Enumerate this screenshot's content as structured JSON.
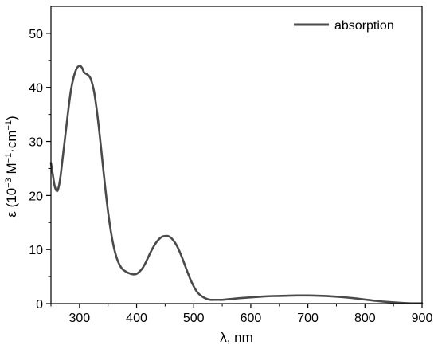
{
  "chart_data": {
    "type": "line",
    "title": "",
    "xlabel": "λ, nm",
    "ylabel_parts": {
      "prefix": "ε (10",
      "exp1": "−3",
      "mid1": " M",
      "exp2": "−1",
      "mid2": "·cm",
      "exp3": "−1",
      "suffix": ")"
    },
    "xlim": [
      250,
      900
    ],
    "ylim": [
      0,
      55
    ],
    "xticks": [
      300,
      400,
      500,
      600,
      700,
      800,
      900
    ],
    "xtick_labels": [
      "300",
      "400",
      "500",
      "600",
      "700",
      "800",
      "900"
    ],
    "yticks": [
      0,
      10,
      20,
      30,
      40,
      50
    ],
    "ytick_labels": [
      "0",
      "10",
      "20",
      "30",
      "40",
      "50"
    ],
    "legend_position": "top-right",
    "grid": false,
    "series": [
      {
        "name": "absorption",
        "color": "#4a4a4a",
        "x": [
          250,
          253,
          256,
          259,
          262,
          266,
          270,
          275,
          280,
          285,
          290,
          295,
          300,
          304,
          308,
          312,
          316,
          320,
          325,
          330,
          335,
          340,
          345,
          350,
          355,
          360,
          365,
          370,
          375,
          380,
          385,
          390,
          395,
          400,
          405,
          410,
          415,
          420,
          425,
          430,
          435,
          440,
          445,
          450,
          455,
          460,
          465,
          470,
          475,
          480,
          485,
          490,
          495,
          500,
          505,
          510,
          515,
          520,
          525,
          530,
          535,
          540,
          545,
          550,
          555,
          560,
          570,
          580,
          600,
          620,
          640,
          660,
          680,
          700,
          720,
          740,
          760,
          780,
          800,
          820,
          840,
          860,
          880,
          900
        ],
        "y": [
          26.0,
          24.0,
          22.0,
          21.0,
          21.0,
          23.0,
          26.5,
          31.0,
          35.5,
          39.5,
          42.0,
          43.5,
          44.0,
          43.7,
          42.8,
          42.5,
          42.2,
          41.5,
          39.5,
          36.0,
          31.5,
          26.5,
          21.5,
          17.0,
          13.3,
          10.5,
          8.5,
          7.2,
          6.4,
          6.0,
          5.7,
          5.5,
          5.4,
          5.5,
          5.9,
          6.5,
          7.4,
          8.5,
          9.6,
          10.6,
          11.4,
          12.0,
          12.4,
          12.5,
          12.5,
          12.2,
          11.6,
          10.8,
          9.7,
          8.4,
          7.0,
          5.6,
          4.3,
          3.2,
          2.3,
          1.7,
          1.3,
          1.0,
          0.8,
          0.7,
          0.7,
          0.7,
          0.7,
          0.7,
          0.75,
          0.8,
          0.9,
          1.0,
          1.15,
          1.3,
          1.4,
          1.45,
          1.5,
          1.5,
          1.45,
          1.35,
          1.2,
          1.0,
          0.75,
          0.5,
          0.3,
          0.15,
          0.05,
          0.05
        ]
      }
    ]
  }
}
